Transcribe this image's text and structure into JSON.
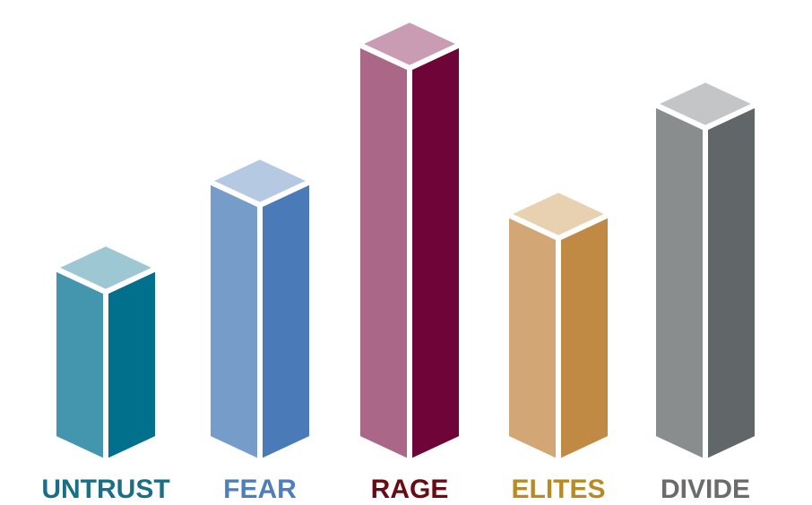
{
  "chart_data": {
    "type": "bar",
    "style": "3d-isometric",
    "categories": [
      "UNTRUST",
      "FEAR",
      "RAGE",
      "ELITES",
      "DIVIDE"
    ],
    "values": [
      190,
      287,
      440,
      250,
      373
    ],
    "title": "",
    "xlabel": "",
    "ylabel": "",
    "grid": false,
    "colors": [
      {
        "top": "#9CC7D3",
        "left": "#4396AE",
        "right": "#01708D",
        "label": "#1A6F87"
      },
      {
        "top": "#B6C9E3",
        "left": "#769DC9",
        "right": "#4A7BB8",
        "label": "#4E7FBA"
      },
      {
        "top": "#C99CB4",
        "left": "#AA6788",
        "right": "#6F0438",
        "label": "#6A0B12"
      },
      {
        "top": "#E8D1B1",
        "left": "#D2A775",
        "right": "#C08A44",
        "label": "#B88A23"
      },
      {
        "top": "#C3C5C6",
        "left": "#8A8D8E",
        "right": "#616668",
        "label": "#6A6B6C"
      }
    ]
  }
}
